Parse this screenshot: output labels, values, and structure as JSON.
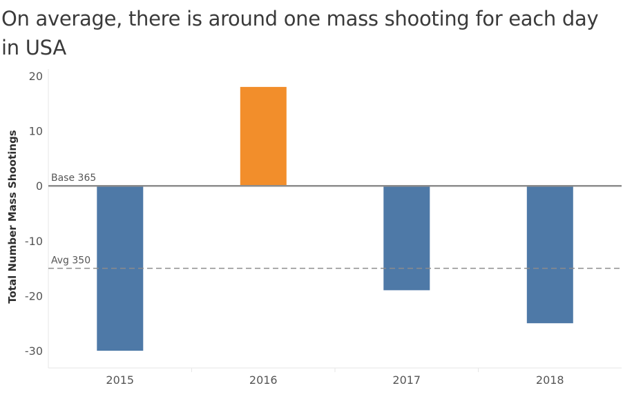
{
  "chart_data": {
    "type": "bar",
    "title": "On average, there is around one mass shooting for each day in USA",
    "ylabel": "Total Number Mass Shootings",
    "xlabel": "",
    "categories": [
      "2015",
      "2016",
      "2017",
      "2018"
    ],
    "values": [
      -30,
      18,
      -19,
      -25
    ],
    "ylim": [
      -33,
      21
    ],
    "yticks": [
      20,
      10,
      0,
      -10,
      -20,
      -30
    ],
    "reference_lines": [
      {
        "label": "Base 365",
        "value": 0,
        "style": "solid"
      },
      {
        "label": "Avg 350",
        "value": -15,
        "style": "dashed"
      }
    ],
    "colors": {
      "negative": "#4e79a7",
      "positive": "#f28e2b",
      "base_line": "#8c8c8c",
      "avg_line": "#8c8c8c"
    },
    "grid": false,
    "legend": "none"
  }
}
